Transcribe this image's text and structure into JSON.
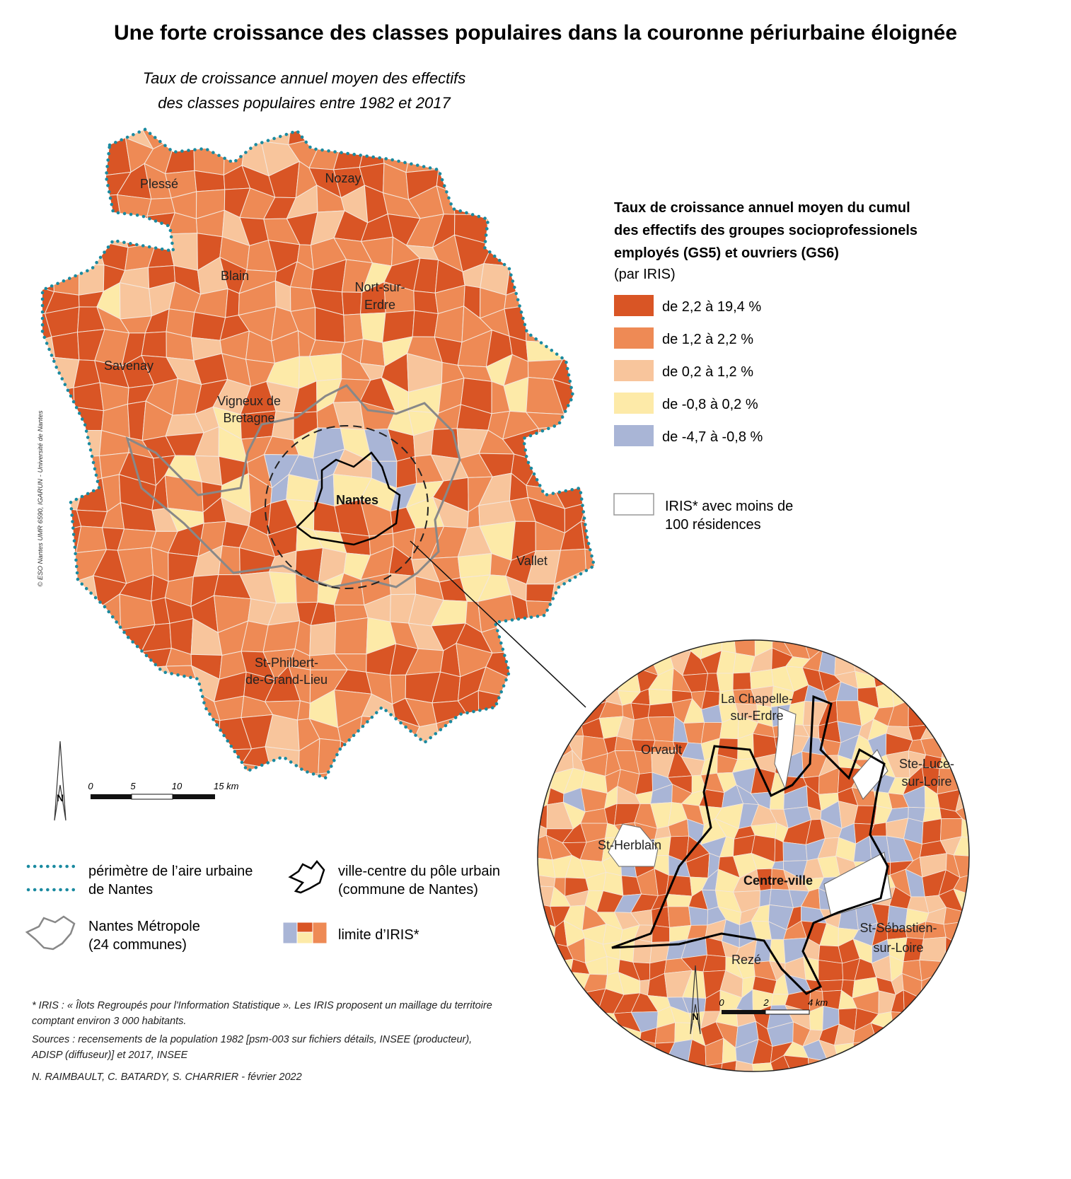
{
  "title": "Une forte croissance des classes populaires dans la couronne périurbaine éloignée",
  "subtitle": [
    "Taux de croissance annuel moyen des effectifs",
    "des classes populaires entre 1982 et 2017"
  ],
  "legend": {
    "title": [
      "Taux de croissance annuel moyen du cumul",
      "des effectifs des groupes socioprofessionels",
      "employés (GS5) et ouvriers (GS6)"
    ],
    "note": "(par IRIS)",
    "classes": [
      {
        "label": "de 2,2 à 19,4 %",
        "color": "#d95525"
      },
      {
        "label": "de 1,2 à 2,2 %",
        "color": "#ee8a55"
      },
      {
        "label": "de 0,2 à 1,2 %",
        "color": "#f8c59c"
      },
      {
        "label": "de -0,8 à 0,2 %",
        "color": "#fdeaa8"
      },
      {
        "label": "de -4,7 à -0,8 %",
        "color": "#a9b5d6"
      }
    ],
    "no_data": [
      "IRIS* avec moins de",
      "100 résidences"
    ]
  },
  "map_labels": [
    "Plessé",
    "Nozay",
    "Blain",
    [
      "Nort-sur-",
      "Erdre"
    ],
    "Savenay",
    [
      "Vigneux de",
      "Bretagne"
    ],
    "Nantes",
    "Vallet",
    [
      "St-Philbert-",
      "de-Grand-Lieu"
    ]
  ],
  "inset_labels": [
    [
      "La Chapelle-",
      "sur-Erdre"
    ],
    "Orvault",
    [
      "Ste-Luce-",
      "sur-Loire"
    ],
    "St-Herblain",
    "Centre-ville",
    [
      "St-Sébastien-",
      "sur-Loire"
    ],
    "Rezé"
  ],
  "north": "N",
  "scale_bar": [
    "0",
    "5",
    "10",
    "15 km"
  ],
  "inset_scale_bar": [
    "0",
    "2",
    "4 km"
  ],
  "symbols": [
    [
      "périmètre de l’aire urbaine",
      "de Nantes"
    ],
    [
      "ville-centre du pôle urbain",
      "(commune de Nantes)"
    ],
    [
      "Nantes Métropole",
      "(24 communes)"
    ],
    [
      "limite d’IRIS*"
    ]
  ],
  "credit_side": "© ESO Nantes UMR 6590, IGARUN - Université de Nantes",
  "footnotes": [
    "* IRIS : « Îlots Regroupés pour l'Information Statistique ». Les IRIS proposent un maillage du territoire",
    "comptant environ 3 000 habitants.",
    "Sources : recensements de la population 1982 [psm-003 sur fichiers détails, INSEE (producteur),",
    "ADISP (diffuseur)] et 2017, INSEE"
  ],
  "authors": "N. RAIMBAULT, C. BATARDY, S. CHARRIER -  février 2022"
}
